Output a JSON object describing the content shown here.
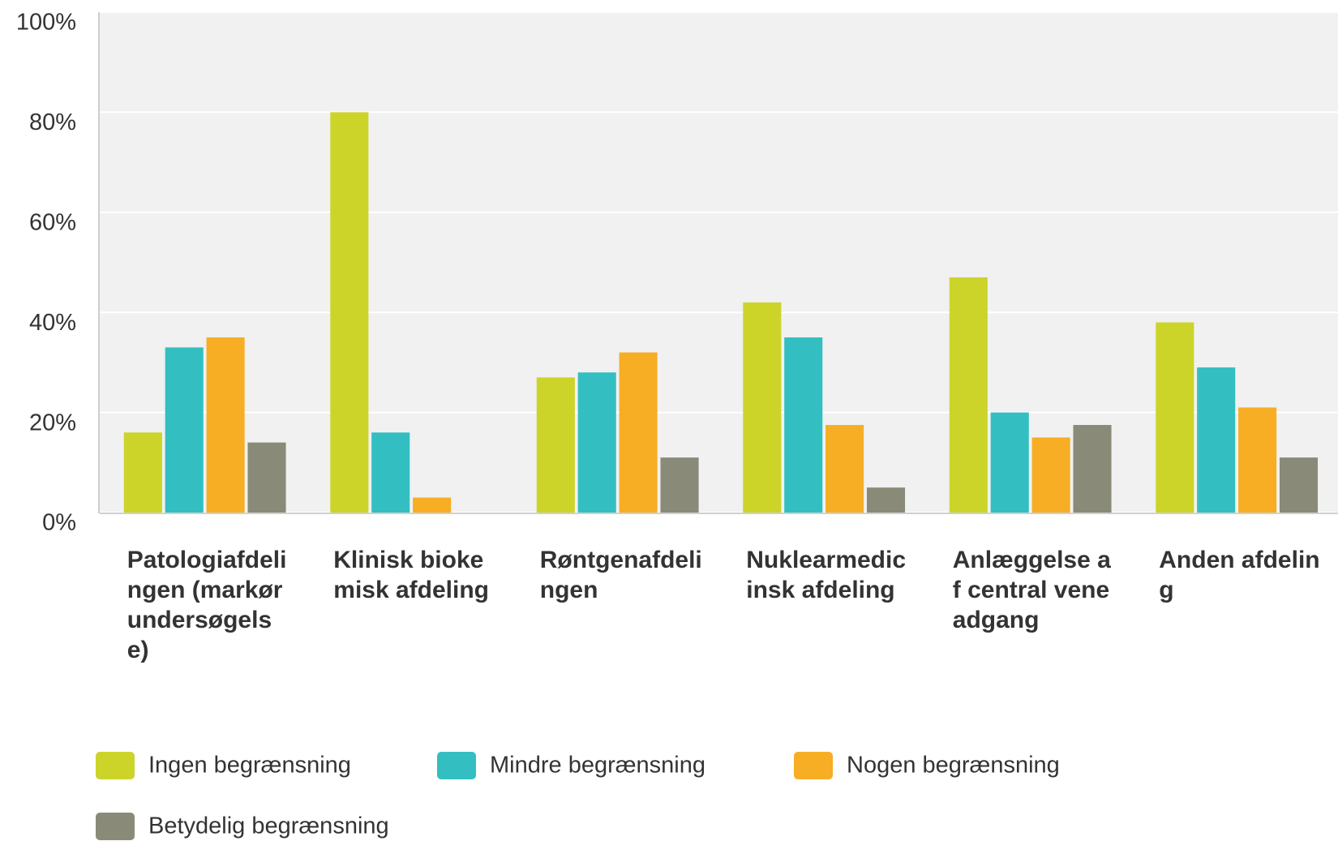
{
  "chart_data": {
    "type": "bar",
    "categories": [
      "Patologiafdelingen (markørundersøgelse)",
      "Klinisk biokemisk afdeling",
      "Røntgenafdelingen",
      "Nuklearmedicinsk afdeling",
      "Anlæggelse af central veneadgang",
      "Anden afdeling"
    ],
    "series": [
      {
        "name": "Ingen begrænsning",
        "color": "#ccd42a",
        "values": [
          16,
          80,
          27,
          42,
          47,
          38
        ]
      },
      {
        "name": "Mindre begrænsning",
        "color": "#33bfc1",
        "values": [
          33,
          16,
          28,
          35,
          20,
          29
        ]
      },
      {
        "name": "Nogen begrænsning",
        "color": "#f7ae25",
        "values": [
          35,
          3,
          32,
          17.5,
          15,
          21
        ]
      },
      {
        "name": "Betydelig begrænsning",
        "color": "#8a8a78",
        "values": [
          14,
          0,
          11,
          5,
          17.5,
          11
        ]
      }
    ],
    "ylim": [
      0,
      100
    ],
    "yticks": [
      {
        "value": 0,
        "label": "0%"
      },
      {
        "value": 20,
        "label": "20%"
      },
      {
        "value": 40,
        "label": "40%"
      },
      {
        "value": 60,
        "label": "60%"
      },
      {
        "value": 80,
        "label": "80%"
      },
      {
        "value": 100,
        "label": "100%"
      }
    ],
    "grid": true
  }
}
